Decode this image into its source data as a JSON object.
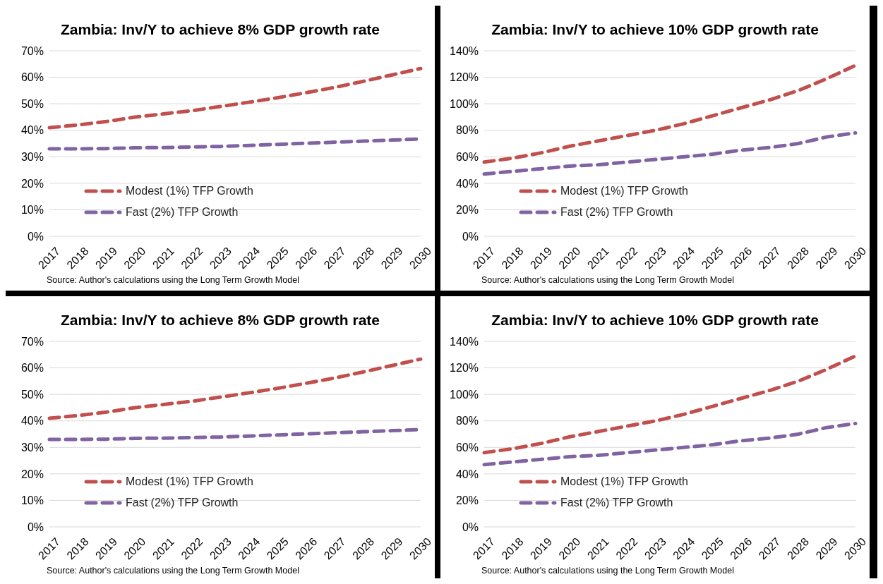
{
  "chart_data": [
    {
      "type": "line",
      "title": "Zambia: Inv/Y to achieve 8% GDP growth rate",
      "categories": [
        "2017",
        "2018",
        "2019",
        "2020",
        "2021",
        "2022",
        "2023",
        "2024",
        "2025",
        "2026",
        "2027",
        "2028",
        "2029",
        "2030"
      ],
      "series": [
        {
          "name": "Modest (1%) TFP Growth",
          "color": "#c0504d",
          "line_style": "dashed",
          "values": [
            41,
            42,
            43.3,
            45,
            46.2,
            47.4,
            49,
            50.6,
            52.3,
            54.2,
            56.2,
            58.5,
            60.9,
            63.3
          ]
        },
        {
          "name": "Fast (2%) TFP Growth",
          "color": "#8064a2",
          "line_style": "dashed",
          "values": [
            33,
            33,
            33.1,
            33.4,
            33.5,
            33.7,
            33.9,
            34.3,
            34.7,
            35.1,
            35.5,
            35.9,
            36.3,
            36.7
          ]
        }
      ],
      "ylim": [
        0,
        70
      ],
      "yticks": [
        {
          "value": 0,
          "label": "0%"
        },
        {
          "value": 10,
          "label": "10%"
        },
        {
          "value": 20,
          "label": "20%"
        },
        {
          "value": 30,
          "label": "30%"
        },
        {
          "value": 40,
          "label": "40%"
        },
        {
          "value": 50,
          "label": "50%"
        },
        {
          "value": 60,
          "label": "60%"
        },
        {
          "value": 70,
          "label": "70%"
        }
      ],
      "grid": "y",
      "legend": "bottom left",
      "annotations": [
        "Source: Author's calculations using the Long Term Growth Model"
      ]
    },
    {
      "type": "line",
      "title": "Zambia: Inv/Y to achieve 10% GDP growth rate",
      "categories": [
        "2017",
        "2018",
        "2019",
        "2020",
        "2021",
        "2022",
        "2023",
        "2024",
        "2025",
        "2026",
        "2027",
        "2028",
        "2029",
        "2030"
      ],
      "series": [
        {
          "name": "Modest (1%) TFP Growth",
          "color": "#c0504d",
          "line_style": "dashed",
          "values": [
            56,
            59,
            63,
            68,
            72,
            76,
            80,
            85,
            91,
            97,
            103,
            110,
            119,
            129
          ]
        },
        {
          "name": "Fast (2%) TFP Growth",
          "color": "#8064a2",
          "line_style": "dashed",
          "values": [
            47,
            49,
            51,
            53,
            54,
            56,
            58,
            60,
            62,
            65,
            67,
            70,
            75,
            78
          ]
        }
      ],
      "ylim": [
        0,
        140
      ],
      "yticks": [
        {
          "value": 0,
          "label": "0%"
        },
        {
          "value": 20,
          "label": "20%"
        },
        {
          "value": 40,
          "label": "40%"
        },
        {
          "value": 60,
          "label": "60%"
        },
        {
          "value": 80,
          "label": "80%"
        },
        {
          "value": 100,
          "label": "100%"
        },
        {
          "value": 120,
          "label": "120%"
        },
        {
          "value": 140,
          "label": "140%"
        }
      ],
      "grid": "y",
      "legend": "bottom left",
      "annotations": [
        "Source: Author's calculations using the Long Term Growth Model"
      ]
    },
    {
      "type": "line",
      "title": "Zambia: Inv/Y to achieve 8% GDP growth rate",
      "categories": [
        "2017",
        "2018",
        "2019",
        "2020",
        "2021",
        "2022",
        "2023",
        "2024",
        "2025",
        "2026",
        "2027",
        "2028",
        "2029",
        "2030"
      ],
      "series": [
        {
          "name": "Modest (1%) TFP Growth",
          "color": "#c0504d",
          "line_style": "dashed",
          "values": [
            41,
            42,
            43.3,
            45,
            46.2,
            47.4,
            49,
            50.6,
            52.3,
            54.2,
            56.2,
            58.5,
            60.9,
            63.3
          ]
        },
        {
          "name": "Fast (2%) TFP Growth",
          "color": "#8064a2",
          "line_style": "dashed",
          "values": [
            33,
            33,
            33.1,
            33.4,
            33.5,
            33.7,
            33.9,
            34.3,
            34.7,
            35.1,
            35.5,
            35.9,
            36.3,
            36.7
          ]
        }
      ],
      "ylim": [
        0,
        70
      ],
      "yticks": [
        {
          "value": 0,
          "label": "0%"
        },
        {
          "value": 10,
          "label": "10%"
        },
        {
          "value": 20,
          "label": "20%"
        },
        {
          "value": 30,
          "label": "30%"
        },
        {
          "value": 40,
          "label": "40%"
        },
        {
          "value": 50,
          "label": "50%"
        },
        {
          "value": 60,
          "label": "60%"
        },
        {
          "value": 70,
          "label": "70%"
        }
      ],
      "grid": "y",
      "legend": "bottom left",
      "annotations": [
        "Source: Author's calculations using the Long Term Growth Model"
      ]
    },
    {
      "type": "line",
      "title": "Zambia: Inv/Y to achieve 10% GDP growth rate",
      "categories": [
        "2017",
        "2018",
        "2019",
        "2020",
        "2021",
        "2022",
        "2023",
        "2024",
        "2025",
        "2026",
        "2027",
        "2028",
        "2029",
        "2030"
      ],
      "series": [
        {
          "name": "Modest (1%) TFP Growth",
          "color": "#c0504d",
          "line_style": "dashed",
          "values": [
            56,
            59,
            63,
            68,
            72,
            76,
            80,
            85,
            91,
            97,
            103,
            110,
            119,
            129
          ]
        },
        {
          "name": "Fast (2%) TFP Growth",
          "color": "#8064a2",
          "line_style": "dashed",
          "values": [
            47,
            49,
            51,
            53,
            54,
            56,
            58,
            60,
            62,
            65,
            67,
            70,
            75,
            78
          ]
        }
      ],
      "ylim": [
        0,
        140
      ],
      "yticks": [
        {
          "value": 0,
          "label": "0%"
        },
        {
          "value": 20,
          "label": "20%"
        },
        {
          "value": 40,
          "label": "40%"
        },
        {
          "value": 60,
          "label": "60%"
        },
        {
          "value": 80,
          "label": "80%"
        },
        {
          "value": 100,
          "label": "100%"
        },
        {
          "value": 120,
          "label": "120%"
        },
        {
          "value": 140,
          "label": "140%"
        }
      ],
      "grid": "y",
      "legend": "bottom left",
      "annotations": [
        "Source: Author's calculations using the Long Term Growth Model"
      ]
    }
  ]
}
